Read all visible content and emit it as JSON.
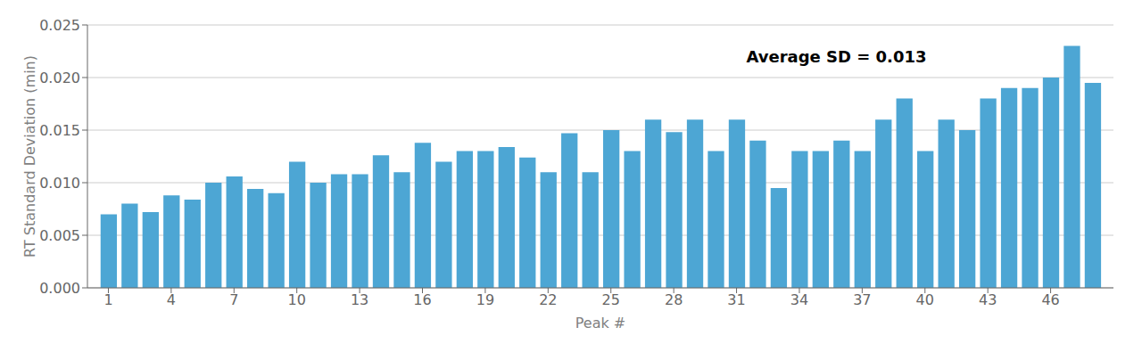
{
  "chart_data": {
    "type": "bar",
    "x": [
      1,
      2,
      3,
      4,
      5,
      6,
      7,
      8,
      9,
      10,
      11,
      12,
      13,
      14,
      15,
      16,
      17,
      18,
      19,
      20,
      21,
      22,
      23,
      24,
      25,
      26,
      27,
      28,
      29,
      30,
      31,
      32,
      33,
      34,
      35,
      36,
      37,
      38,
      39,
      40,
      41,
      42,
      43,
      44,
      45,
      46,
      47,
      48
    ],
    "values": [
      0.007,
      0.008,
      0.0072,
      0.0088,
      0.0084,
      0.01,
      0.0106,
      0.0094,
      0.009,
      0.012,
      0.01,
      0.0108,
      0.0108,
      0.0126,
      0.011,
      0.0138,
      0.012,
      0.013,
      0.013,
      0.0134,
      0.0124,
      0.011,
      0.0147,
      0.011,
      0.015,
      0.013,
      0.016,
      0.0148,
      0.016,
      0.013,
      0.016,
      0.014,
      0.0095,
      0.013,
      0.013,
      0.014,
      0.013,
      0.016,
      0.018,
      0.013,
      0.016,
      0.015,
      0.018,
      0.019,
      0.019,
      0.02,
      0.023,
      0.0195
    ],
    "color": "#4da6d4",
    "xlabel": "Peak #",
    "ylabel": "RT Standard Deviation (min)",
    "annotation": "Average SD = 0.013",
    "xlim": [
      0,
      49
    ],
    "ylim": [
      0,
      0.025
    ],
    "xticks": [
      1,
      4,
      7,
      10,
      13,
      16,
      19,
      22,
      25,
      28,
      31,
      34,
      37,
      40,
      43,
      46
    ],
    "yticks": [
      {
        "value": 0,
        "label": "0.000"
      },
      {
        "value": 0.005,
        "label": "0.005"
      },
      {
        "value": 0.01,
        "label": "0.010"
      },
      {
        "value": 0.015,
        "label": "0.015"
      },
      {
        "value": 0.02,
        "label": "0.020"
      },
      {
        "value": 0.025,
        "label": "0.025"
      }
    ],
    "grid": true
  }
}
